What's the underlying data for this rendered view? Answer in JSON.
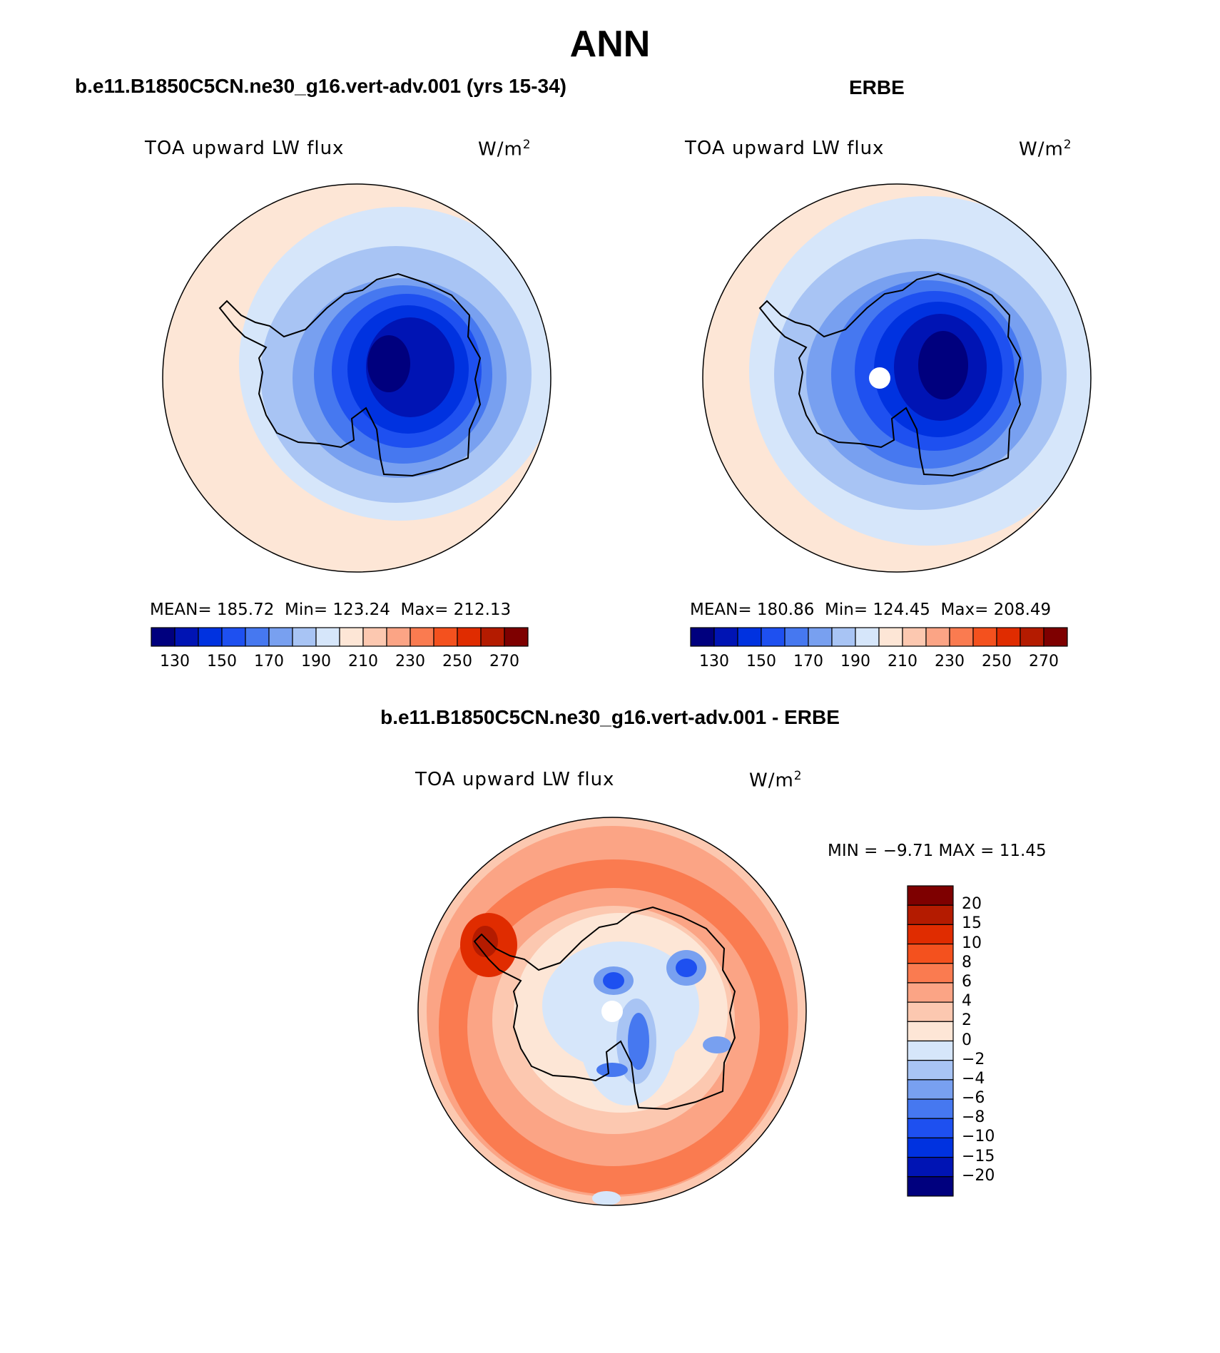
{
  "page_title": "ANN",
  "panels": [
    {
      "id": "model",
      "subtitle": "b.e11.B1850C5CN.ne30_g16.vert-adv.001 (yrs 15-34)",
      "variable": "TOA upward LW flux",
      "units_base": "W/m",
      "units_sup": "2",
      "stats": {
        "mean_label": "MEAN=",
        "mean": "185.72",
        "min_label": "Min=",
        "min": "123.24",
        "max_label": "Max=",
        "max": "212.13"
      }
    },
    {
      "id": "obs",
      "subtitle": "ERBE",
      "variable": "TOA upward LW flux",
      "units_base": "W/m",
      "units_sup": "2",
      "stats": {
        "mean_label": "MEAN=",
        "mean": "180.86",
        "min_label": "Min=",
        "min": "124.45",
        "max_label": "Max=",
        "max": "208.49"
      }
    },
    {
      "id": "diff",
      "subtitle": "b.e11.B1850C5CN.ne30_g16.vert-adv.001 - ERBE",
      "variable": "TOA upward LW flux",
      "units_base": "W/m",
      "units_sup": "2",
      "stats": {
        "min_label": "MIN =",
        "min": "−9.71",
        "max_label": "MAX =",
        "max": "11.45"
      }
    }
  ],
  "colorbar_abs": {
    "colors": [
      "#00007e",
      "#0014b4",
      "#0032e0",
      "#1e50f0",
      "#4678f0",
      "#78a0f0",
      "#a8c4f4",
      "#d6e6fa",
      "#fde6d6",
      "#fcc8b0",
      "#fba485",
      "#fa7b50",
      "#f4511e",
      "#e02c00",
      "#b41b00",
      "#7e0000"
    ],
    "tick_labels": [
      "130",
      "150",
      "170",
      "190",
      "210",
      "230",
      "250",
      "270"
    ]
  },
  "colorbar_diff": {
    "colors": [
      "#7e0000",
      "#b41b00",
      "#e02c00",
      "#f4511e",
      "#fa7b50",
      "#fba485",
      "#fcc8b0",
      "#fde6d6",
      "#d6e6fa",
      "#a8c4f4",
      "#78a0f0",
      "#4678f0",
      "#1e50f0",
      "#0032e0",
      "#0014b4",
      "#00007e"
    ],
    "tick_labels": [
      "20",
      "15",
      "10",
      "8",
      "6",
      "4",
      "2",
      "0",
      "−2",
      "−4",
      "−6",
      "−8",
      "−10",
      "−15",
      "−20"
    ]
  },
  "chart_data": [
    {
      "type": "heatmap",
      "projection": "south polar stereographic",
      "title": "TOA upward LW flux",
      "units": "W/m2",
      "colorbar_levels": [
        130,
        140,
        150,
        160,
        170,
        180,
        190,
        200,
        210,
        220,
        230,
        240,
        250,
        260,
        270
      ],
      "mean": 185.72,
      "min": 123.24,
      "max": 212.13
    },
    {
      "type": "heatmap",
      "projection": "south polar stereographic",
      "title": "TOA upward LW flux",
      "units": "W/m2",
      "colorbar_levels": [
        130,
        140,
        150,
        160,
        170,
        180,
        190,
        200,
        210,
        220,
        230,
        240,
        250,
        260,
        270
      ],
      "mean": 180.86,
      "min": 124.45,
      "max": 208.49
    },
    {
      "type": "heatmap",
      "projection": "south polar stereographic",
      "title": "TOA upward LW flux",
      "units": "W/m2",
      "colorbar_levels": [
        20,
        15,
        10,
        8,
        6,
        4,
        2,
        0,
        -2,
        -4,
        -6,
        -8,
        -10,
        -15,
        -20
      ],
      "min": -9.71,
      "max": 11.45
    }
  ]
}
